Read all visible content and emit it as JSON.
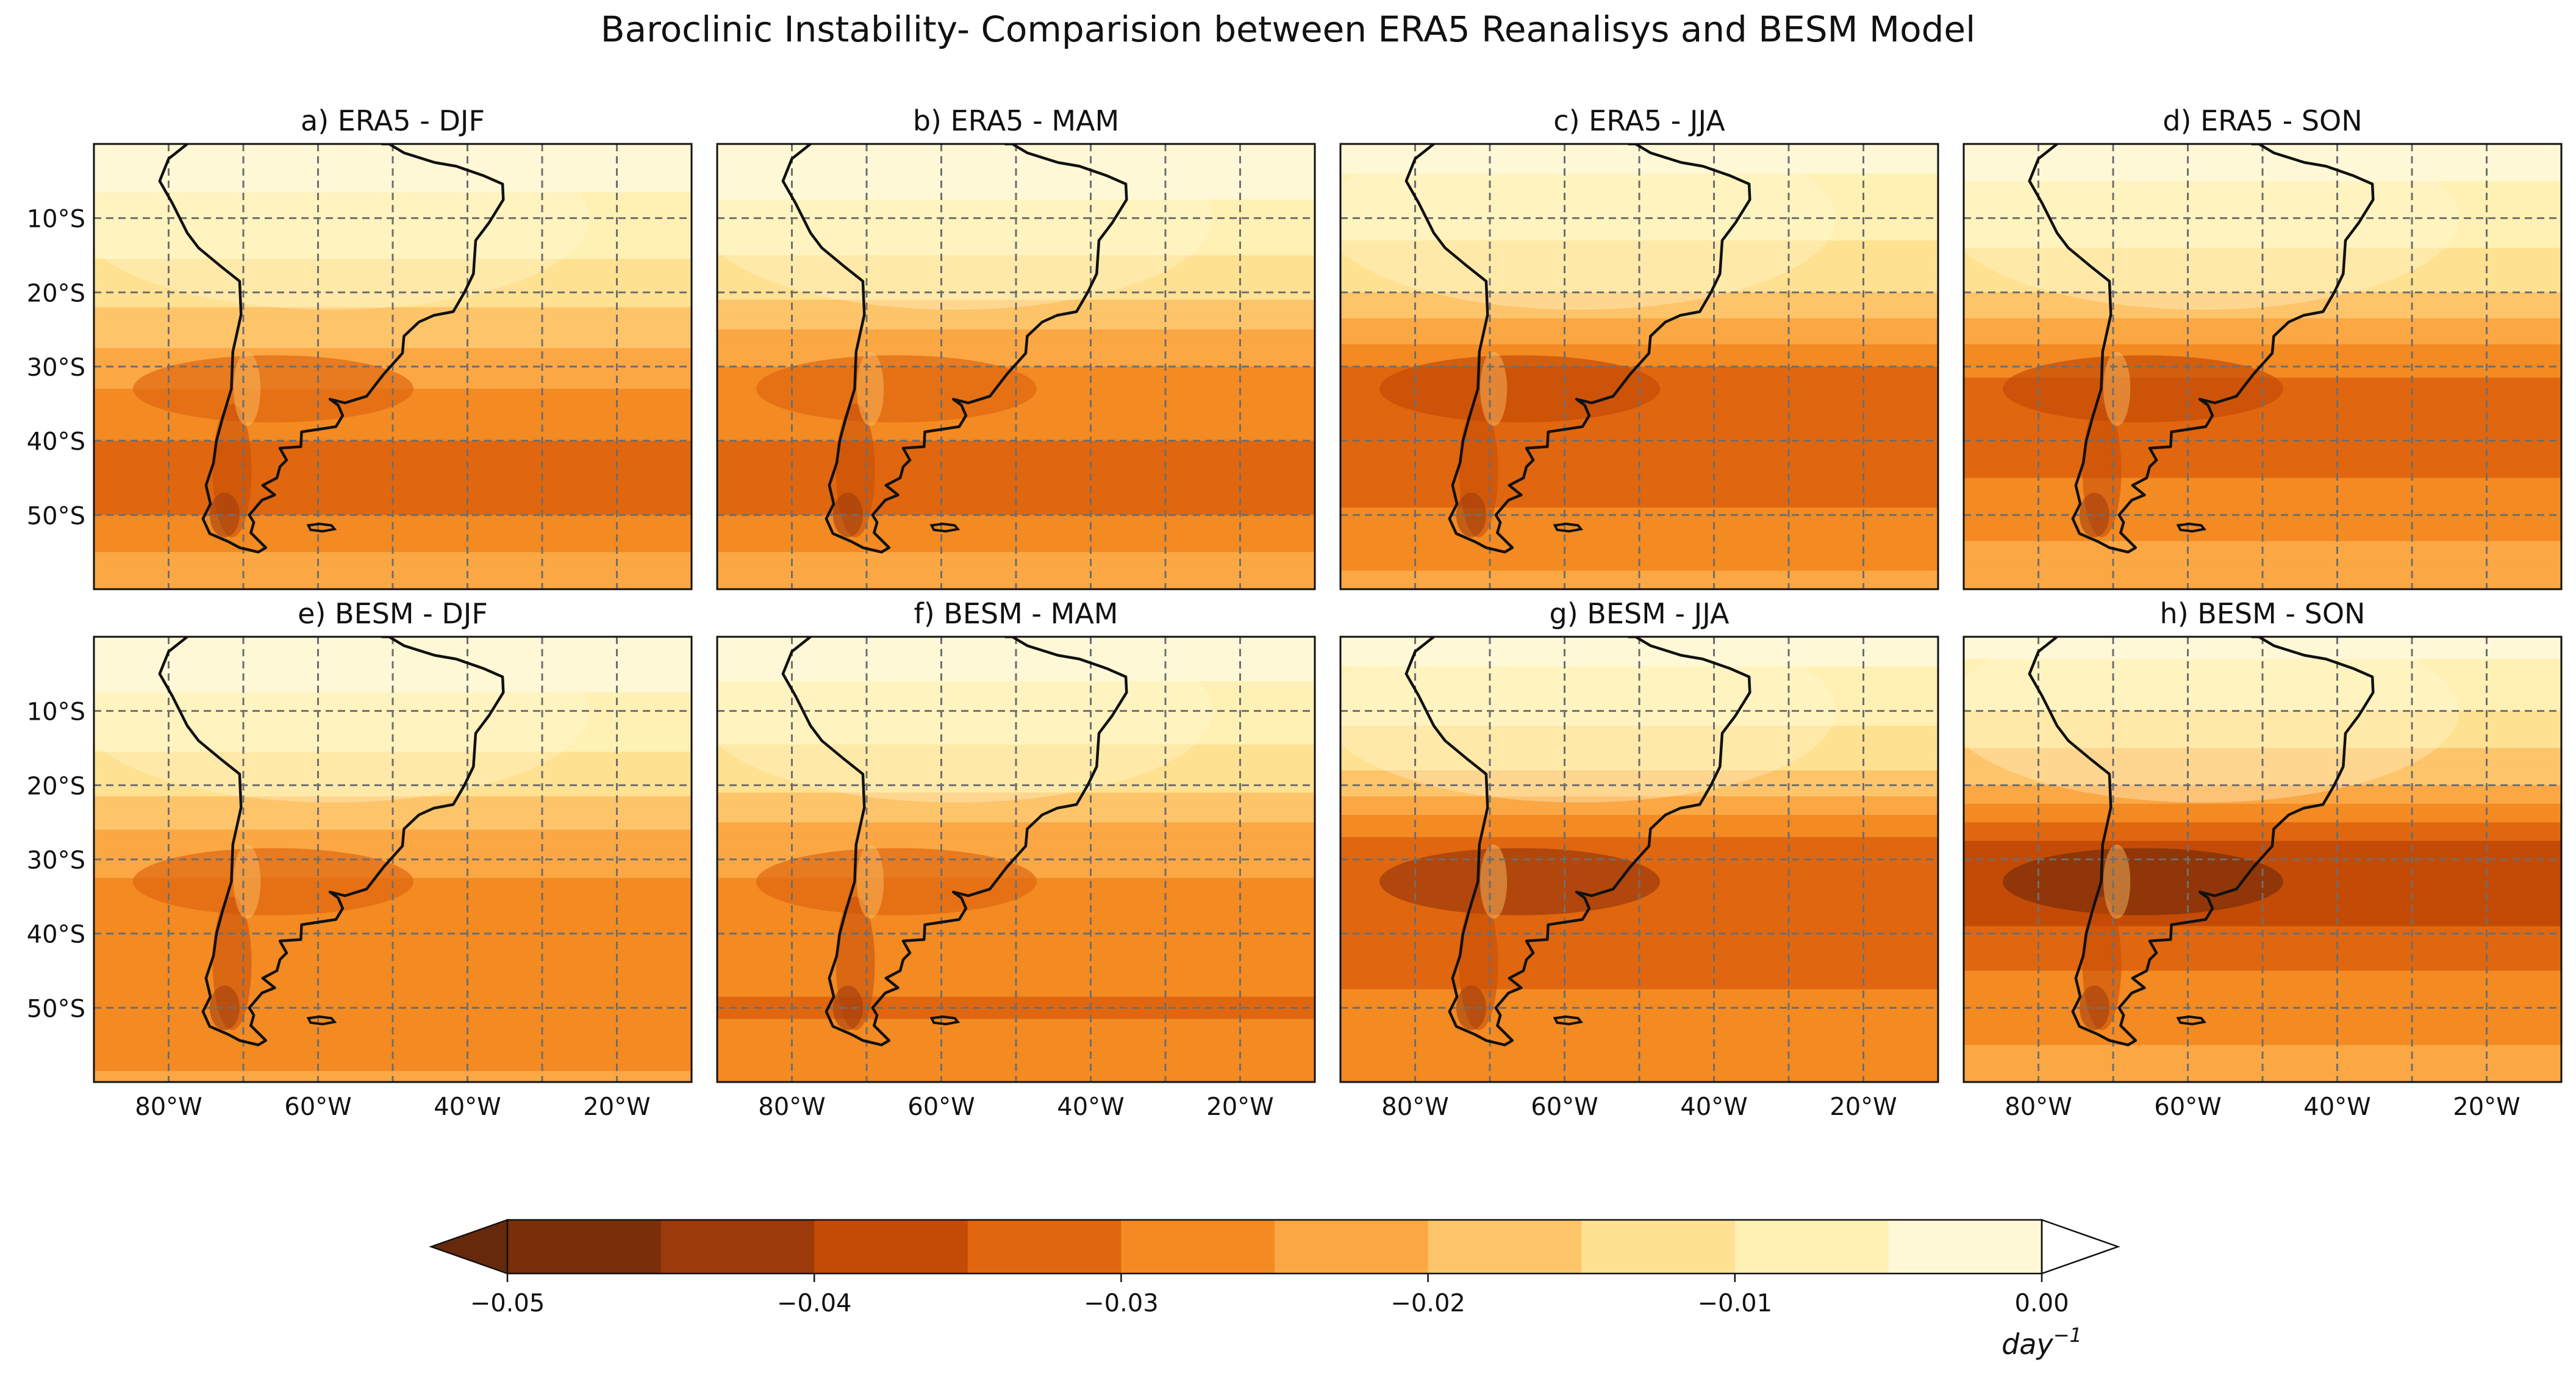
{
  "figure_title": "Baroclinic Instability- Comparision between ERA5 Reanalisys and BESM Model",
  "panels": [
    {
      "label": "a) ERA5 - DJF",
      "dataset": "ERA5",
      "season": "DJF"
    },
    {
      "label": "b) ERA5 - MAM",
      "dataset": "ERA5",
      "season": "MAM"
    },
    {
      "label": "c) ERA5 - JJA",
      "dataset": "ERA5",
      "season": "JJA"
    },
    {
      "label": "d) ERA5 - SON",
      "dataset": "ERA5",
      "season": "SON"
    },
    {
      "label": "e) BESM - DJF",
      "dataset": "BESM",
      "season": "DJF"
    },
    {
      "label": "f) BESM - MAM",
      "dataset": "BESM",
      "season": "MAM"
    },
    {
      "label": "g) BESM - JJA",
      "dataset": "BESM",
      "season": "JJA"
    },
    {
      "label": "h) BESM - SON",
      "dataset": "BESM",
      "season": "SON"
    }
  ],
  "chart_data": {
    "type": "heatmap",
    "region": {
      "lon_range": [
        -90,
        -10
      ],
      "lat_range": [
        -60,
        0
      ]
    },
    "lat_ticks": [
      -10,
      -20,
      -30,
      -40,
      -50
    ],
    "lat_tick_labels": [
      "10°S",
      "20°S",
      "30°S",
      "40°S",
      "50°S"
    ],
    "lon_ticks": [
      -80,
      -60,
      -40,
      -20
    ],
    "lon_tick_labels": [
      "80°W",
      "60°W",
      "40°W",
      "20°W"
    ],
    "colorbar": {
      "levels": [
        -0.05,
        -0.045,
        -0.04,
        -0.035,
        -0.03,
        -0.025,
        -0.02,
        -0.015,
        -0.01,
        -0.005,
        0.0
      ],
      "tick_values": [
        -0.05,
        -0.04,
        -0.03,
        -0.02,
        -0.01,
        0.0
      ],
      "tick_labels": [
        "−0.05",
        "−0.04",
        "−0.03",
        "−0.02",
        "−0.01",
        "0.00"
      ],
      "colors": [
        "#7a2e0a",
        "#9c3a0c",
        "#c44b06",
        "#e0670f",
        "#f38a22",
        "#fba744",
        "#fdc46a",
        "#fee191",
        "#fff0b4",
        "#fff8d6"
      ],
      "extend": "both",
      "under_color": "#66290b",
      "over_color": "#ffffff",
      "unit_label": "day",
      "unit_exponent": "−1"
    },
    "season_profiles": {
      "ERA5-DJF": {
        "lats": [
          0,
          -10,
          -20,
          -25,
          -30,
          -35,
          -40,
          -45,
          -50,
          -55,
          -60
        ],
        "values": [
          -0.003,
          -0.006,
          -0.013,
          -0.018,
          -0.022,
          -0.027,
          -0.03,
          -0.032,
          -0.03,
          -0.025,
          -0.02
        ]
      },
      "ERA5-MAM": {
        "lats": [
          0,
          -10,
          -20,
          -25,
          -30,
          -35,
          -40,
          -45,
          -50,
          -55,
          -60
        ],
        "values": [
          -0.002,
          -0.006,
          -0.014,
          -0.02,
          -0.025,
          -0.028,
          -0.03,
          -0.031,
          -0.03,
          -0.025,
          -0.022
        ]
      },
      "ERA5-JJA": {
        "lats": [
          0,
          -10,
          -20,
          -25,
          -30,
          -35,
          -40,
          -45,
          -50,
          -55,
          -60
        ],
        "values": [
          -0.003,
          -0.008,
          -0.015,
          -0.022,
          -0.03,
          -0.035,
          -0.034,
          -0.033,
          -0.029,
          -0.026,
          -0.024
        ]
      },
      "ERA5-SON": {
        "lats": [
          0,
          -10,
          -20,
          -25,
          -30,
          -35,
          -40,
          -45,
          -50,
          -55,
          -60
        ],
        "values": [
          -0.003,
          -0.007,
          -0.015,
          -0.022,
          -0.029,
          -0.032,
          -0.031,
          -0.03,
          -0.028,
          -0.024,
          -0.021
        ]
      },
      "BESM-DJF": {
        "lats": [
          0,
          -10,
          -20,
          -25,
          -30,
          -35,
          -40,
          -45,
          -50,
          -55,
          -60
        ],
        "values": [
          -0.002,
          -0.006,
          -0.013,
          -0.019,
          -0.024,
          -0.026,
          -0.027,
          -0.028,
          -0.03,
          -0.027,
          -0.024
        ]
      },
      "BESM-MAM": {
        "lats": [
          0,
          -10,
          -20,
          -25,
          -30,
          -35,
          -40,
          -45,
          -50,
          -55,
          -60
        ],
        "values": [
          -0.002,
          -0.007,
          -0.014,
          -0.02,
          -0.024,
          -0.026,
          -0.027,
          -0.028,
          -0.031,
          -0.028,
          -0.025
        ]
      },
      "BESM-JJA": {
        "lats": [
          0,
          -10,
          -20,
          -25,
          -30,
          -35,
          -40,
          -45,
          -50,
          -55,
          -60
        ],
        "values": [
          -0.003,
          -0.008,
          -0.017,
          -0.027,
          -0.035,
          -0.035,
          -0.033,
          -0.031,
          -0.029,
          -0.027,
          -0.025
        ]
      },
      "BESM-SON": {
        "lats": [
          0,
          -10,
          -20,
          -25,
          -30,
          -35,
          -40,
          -45,
          -50,
          -55,
          -60
        ],
        "values": [
          -0.003,
          -0.01,
          -0.02,
          -0.03,
          -0.04,
          -0.039,
          -0.034,
          -0.03,
          -0.027,
          -0.025,
          -0.024
        ]
      }
    }
  }
}
